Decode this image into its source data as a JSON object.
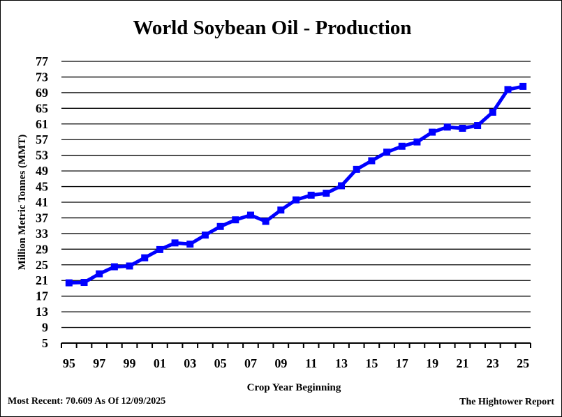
{
  "chart_data": {
    "type": "line",
    "title": "World Soybean Oil - Production",
    "xlabel": "Crop Year Beginning",
    "ylabel": "Million Metric Tonnes (MMT)",
    "ylim": [
      5,
      77
    ],
    "yticks": [
      5,
      9,
      13,
      17,
      21,
      25,
      29,
      33,
      37,
      41,
      45,
      49,
      53,
      57,
      61,
      65,
      69,
      73,
      77
    ],
    "xticks": [
      "95",
      "97",
      "99",
      "01",
      "03",
      "05",
      "07",
      "09",
      "11",
      "13",
      "15",
      "17",
      "19",
      "21",
      "23",
      "25"
    ],
    "grid": true,
    "series": [
      {
        "color": "#0000ff",
        "x": [
          "95",
          "96",
          "97",
          "98",
          "99",
          "00",
          "01",
          "02",
          "03",
          "04",
          "05",
          "06",
          "07",
          "08",
          "09",
          "10",
          "11",
          "12",
          "13",
          "14",
          "15",
          "16",
          "17",
          "18",
          "19",
          "20",
          "21",
          "22",
          "23",
          "24",
          "25"
        ],
        "values": [
          20.4,
          20.5,
          22.7,
          24.5,
          24.7,
          26.8,
          28.9,
          30.6,
          30.3,
          32.6,
          34.8,
          36.5,
          37.7,
          36.1,
          39.0,
          41.6,
          42.8,
          43.3,
          45.2,
          49.4,
          51.6,
          53.8,
          55.3,
          56.4,
          58.9,
          60.2,
          59.9,
          60.6,
          64.0,
          69.8,
          70.6
        ]
      }
    ]
  },
  "footer": {
    "most_recent": "Most Recent: 70.609 As Of 12/09/2025",
    "source": "The Hightower Report"
  }
}
